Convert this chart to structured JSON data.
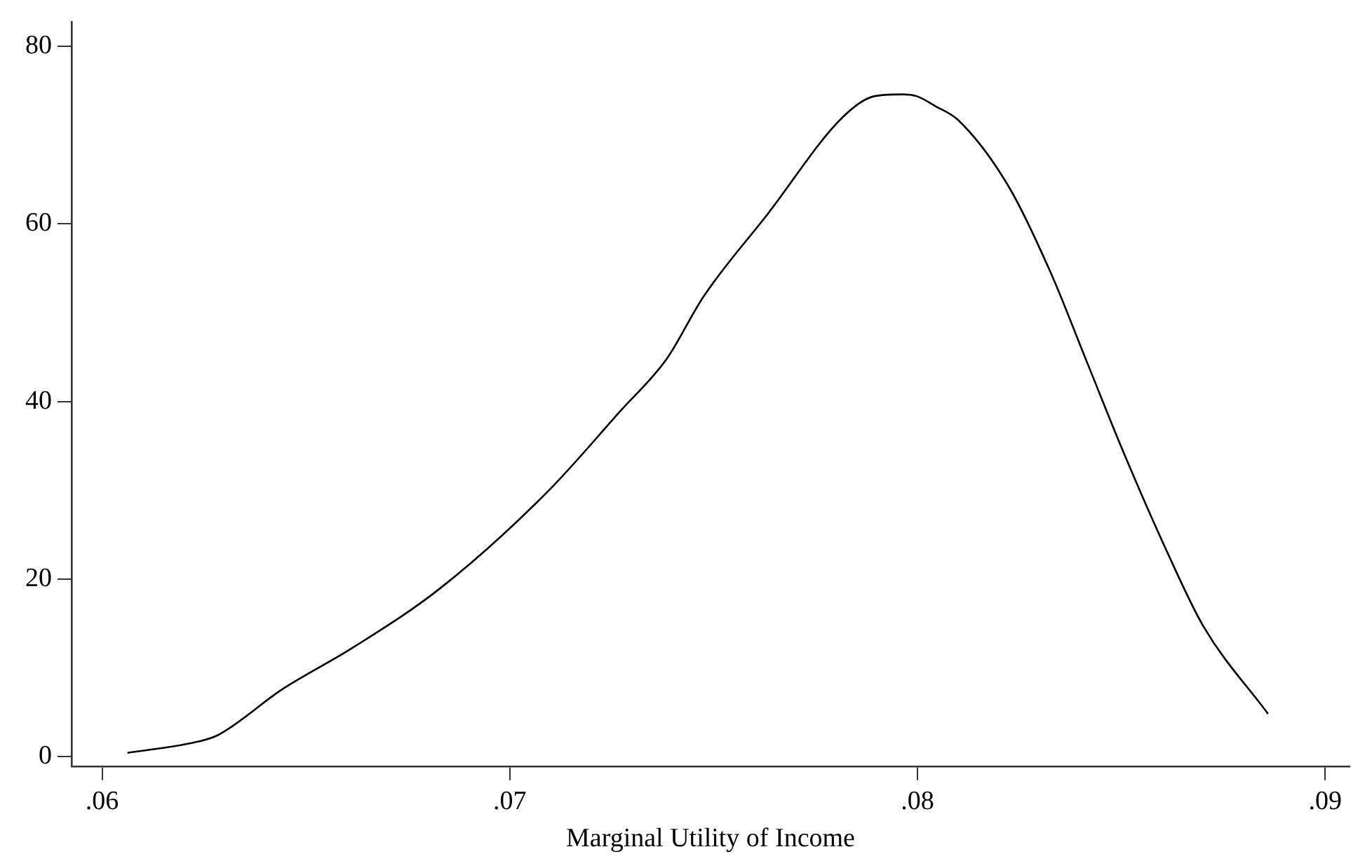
{
  "chart_data": {
    "type": "line",
    "xlabel": "Marginal Utility of Income",
    "x": [
      0.06062,
      0.06238,
      0.06284,
      0.06443,
      0.06613,
      0.06828,
      0.0709,
      0.07271,
      0.07385,
      0.07475,
      0.07634,
      0.07816,
      0.07895,
      0.07964,
      0.07998,
      0.08043,
      0.081,
      0.08224,
      0.08327,
      0.08417,
      0.08508,
      0.0861,
      0.08701,
      0.0886
    ],
    "series": [
      {
        "color": "#000000",
        "values": [
          0.4,
          1.7,
          2.4,
          7.6,
          12.2,
          18.9,
          29.7,
          38.9,
          44.8,
          51.8,
          61.2,
          72.0,
          74.4,
          74.6,
          74.4,
          73.3,
          71.7,
          64.2,
          54.5,
          44.3,
          34.0,
          23.3,
          14.7,
          4.8
        ]
      }
    ],
    "xlim": [
      0.05925,
      0.0906
    ],
    "ylim": [
      -1.1,
      82.8
    ],
    "xticks": [
      {
        "value": 0.06,
        "label": ".06"
      },
      {
        "value": 0.07,
        "label": ".07"
      },
      {
        "value": 0.08,
        "label": ".08"
      },
      {
        "value": 0.09,
        "label": ".09"
      }
    ],
    "yticks": [
      0,
      20,
      40,
      60,
      80
    ],
    "grid": false,
    "legend": false,
    "marker": "none",
    "line_style": "solid"
  }
}
